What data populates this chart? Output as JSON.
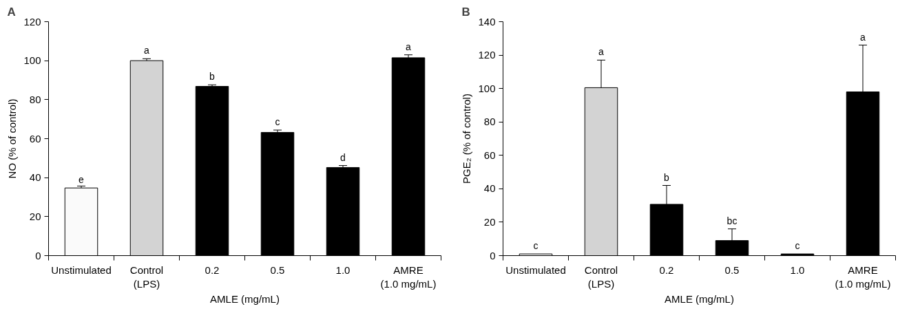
{
  "chart_data": [
    {
      "type": "bar",
      "title": "A",
      "ylabel": "NO (% of control)",
      "xlabel": "AMLE (mg/mL)",
      "categories": [
        "Unstimulated",
        "Control\n(LPS)",
        "0.2",
        "0.5",
        "1.0",
        "AMRE\n(1.0 mg/mL)"
      ],
      "values": [
        34.7,
        100,
        86.8,
        63.2,
        45.2,
        101.5
      ],
      "colors": [
        "#fafafa",
        "#d3d3d3",
        "#000000",
        "#000000",
        "#000000",
        "#000000"
      ],
      "errors": [
        1,
        1,
        0.8,
        1.2,
        1,
        1.5
      ],
      "ylim": [
        0,
        120
      ],
      "yticks": [
        0,
        20,
        40,
        60,
        80,
        100,
        120
      ],
      "grid": false,
      "annotations": [
        {
          "text": "e",
          "x": "Unstimulated",
          "y": 35.7
        },
        {
          "text": "a",
          "x": "Control\n(LPS)",
          "y": 101
        },
        {
          "text": "b",
          "x": "0.2",
          "y": 87.6
        },
        {
          "text": "c",
          "x": "0.5",
          "y": 64.4
        },
        {
          "text": "d",
          "x": "1.0",
          "y": 46.2
        },
        {
          "text": "a",
          "x": "AMRE\n(1.0 mg/mL)",
          "y": 103
        }
      ]
    },
    {
      "type": "bar",
      "title": "B",
      "ylabel": "PGE₂ (% of control)",
      "xlabel": "AMLE (mg/mL)",
      "categories": [
        "Unstimulated",
        "Control\n(LPS)",
        "0.2",
        "0.5",
        "1.0",
        "AMRE\n(1.0 mg/mL)"
      ],
      "values": [
        1,
        100.5,
        30.7,
        9,
        1,
        98
      ],
      "colors": [
        "#fafafa",
        "#d3d3d3",
        "#000000",
        "#000000",
        "#000000",
        "#000000"
      ],
      "errors": [
        null,
        16.5,
        11.3,
        7,
        null,
        28
      ],
      "ylim": [
        0,
        140
      ],
      "yticks": [
        0,
        20,
        40,
        60,
        80,
        100,
        120,
        140
      ],
      "grid": false,
      "annotations": [
        {
          "text": "c",
          "x": "Unstimulated",
          "y": 1
        },
        {
          "text": "a",
          "x": "Control\n(LPS)",
          "y": 117
        },
        {
          "text": "b",
          "x": "0.2",
          "y": 42
        },
        {
          "text": "bc",
          "x": "0.5",
          "y": 16
        },
        {
          "text": "c",
          "x": "1.0",
          "y": 1
        },
        {
          "text": "a",
          "x": "AMRE\n(1.0 mg/mL)",
          "y": 126
        }
      ]
    }
  ]
}
